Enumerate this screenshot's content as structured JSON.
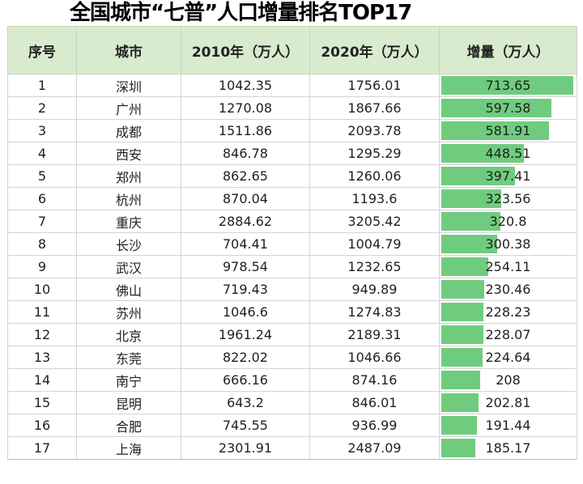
{
  "title": "全国城市“七普”人口增量排名TOP17",
  "headers": {
    "index": "序号",
    "city": "城市",
    "pop_2010": "2010年（万人）",
    "pop_2020": "2020年（万人）",
    "increase": "增量（万人）"
  },
  "bar_color": "#6fcc7f",
  "header_bg": "#d8ebcf",
  "rows": [
    {
      "index": "1",
      "city": "深圳",
      "pop_2010": "1042.35",
      "pop_2020": "1756.01",
      "increase": "713.65"
    },
    {
      "index": "2",
      "city": "广州",
      "pop_2010": "1270.08",
      "pop_2020": "1867.66",
      "increase": "597.58"
    },
    {
      "index": "3",
      "city": "成都",
      "pop_2010": "1511.86",
      "pop_2020": "2093.78",
      "increase": "581.91"
    },
    {
      "index": "4",
      "city": "西安",
      "pop_2010": "846.78",
      "pop_2020": "1295.29",
      "increase": "448.51"
    },
    {
      "index": "5",
      "city": "郑州",
      "pop_2010": "862.65",
      "pop_2020": "1260.06",
      "increase": "397.41"
    },
    {
      "index": "6",
      "city": "杭州",
      "pop_2010": "870.04",
      "pop_2020": "1193.6",
      "increase": "323.56"
    },
    {
      "index": "7",
      "city": "重庆",
      "pop_2010": "2884.62",
      "pop_2020": "3205.42",
      "increase": "320.8"
    },
    {
      "index": "8",
      "city": "长沙",
      "pop_2010": "704.41",
      "pop_2020": "1004.79",
      "increase": "300.38"
    },
    {
      "index": "9",
      "city": "武汉",
      "pop_2010": "978.54",
      "pop_2020": "1232.65",
      "increase": "254.11"
    },
    {
      "index": "10",
      "city": "佛山",
      "pop_2010": "719.43",
      "pop_2020": "949.89",
      "increase": "230.46"
    },
    {
      "index": "11",
      "city": "苏州",
      "pop_2010": "1046.6",
      "pop_2020": "1274.83",
      "increase": "228.23"
    },
    {
      "index": "12",
      "city": "北京",
      "pop_2010": "1961.24",
      "pop_2020": "2189.31",
      "increase": "228.07"
    },
    {
      "index": "13",
      "city": "东莞",
      "pop_2010": "822.02",
      "pop_2020": "1046.66",
      "increase": "224.64"
    },
    {
      "index": "14",
      "city": "南宁",
      "pop_2010": "666.16",
      "pop_2020": "874.16",
      "increase": "208"
    },
    {
      "index": "15",
      "city": "昆明",
      "pop_2010": "643.2",
      "pop_2020": "846.01",
      "increase": "202.81"
    },
    {
      "index": "16",
      "city": "合肥",
      "pop_2010": "745.55",
      "pop_2020": "936.99",
      "increase": "191.44"
    },
    {
      "index": "17",
      "city": "上海",
      "pop_2010": "2301.91",
      "pop_2020": "2487.09",
      "increase": "185.17"
    }
  ]
}
